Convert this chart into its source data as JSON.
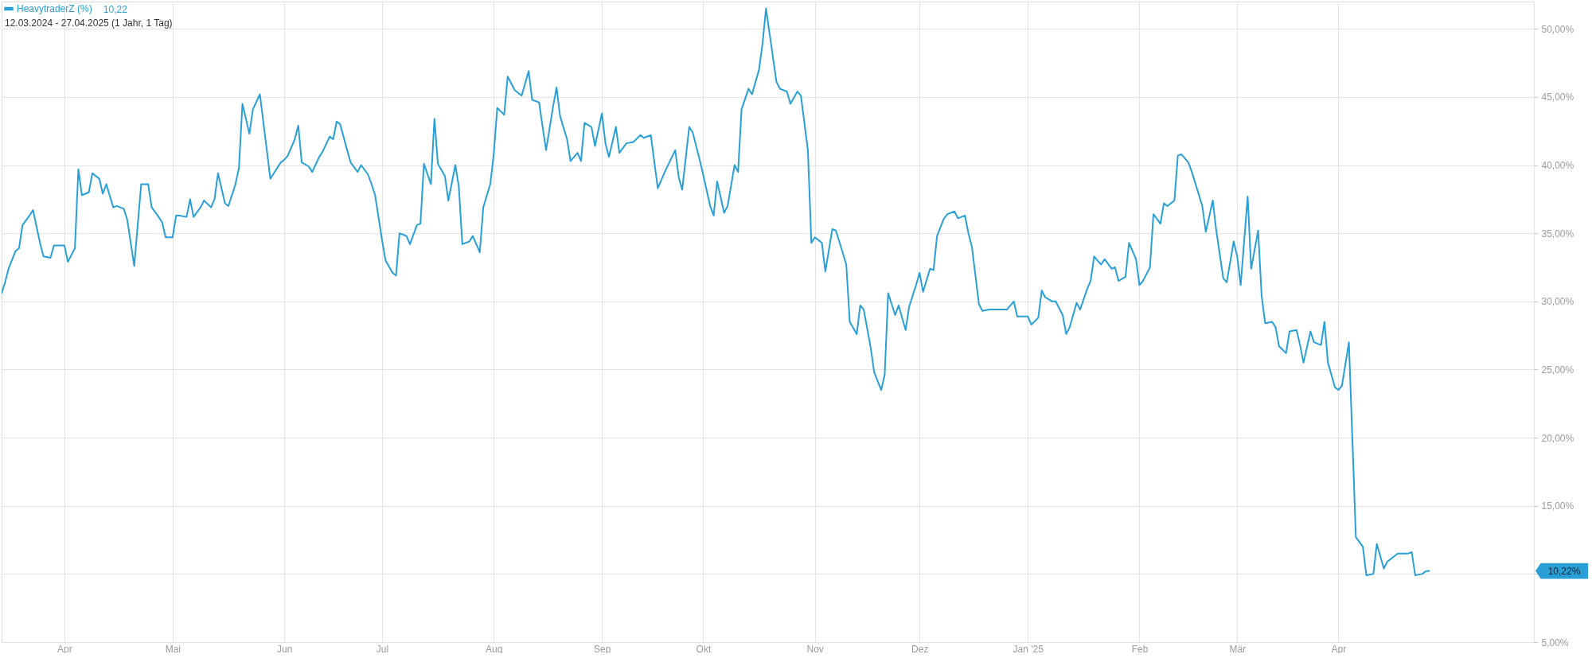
{
  "chart_data": {
    "type": "line",
    "subtitle": "12.03.2024 - 27.04.2025 (1 Jahr, 1 Tag)",
    "x": [
      "2024-03-14",
      "2024-03-15",
      "2024-03-16",
      "2024-03-18",
      "2024-03-19",
      "2024-03-20",
      "2024-03-22",
      "2024-03-23",
      "2024-03-25",
      "2024-03-26",
      "2024-03-28",
      "2024-03-29",
      "2024-04-01",
      "2024-04-02",
      "2024-04-04",
      "2024-04-05",
      "2024-04-06",
      "2024-04-08",
      "2024-04-09",
      "2024-04-11",
      "2024-04-12",
      "2024-04-13",
      "2024-04-15",
      "2024-04-16",
      "2024-04-18",
      "2024-04-19",
      "2024-04-21",
      "2024-04-22",
      "2024-04-23",
      "2024-04-25",
      "2024-04-26",
      "2024-04-28",
      "2024-04-29",
      "2024-04-30",
      "2024-05-02",
      "2024-05-03",
      "2024-05-04",
      "2024-05-06",
      "2024-05-07",
      "2024-05-08",
      "2024-05-10",
      "2024-05-11",
      "2024-05-13",
      "2024-05-14",
      "2024-05-15",
      "2024-05-17",
      "2024-05-18",
      "2024-05-20",
      "2024-05-21",
      "2024-05-22",
      "2024-05-24",
      "2024-05-25",
      "2024-05-27",
      "2024-05-30",
      "2024-05-31",
      "2024-06-02",
      "2024-06-03",
      "2024-06-04",
      "2024-06-06",
      "2024-06-07",
      "2024-06-08",
      "2024-06-10",
      "2024-06-11",
      "2024-06-13",
      "2024-06-14",
      "2024-06-16",
      "2024-06-17",
      "2024-06-18",
      "2024-06-19",
      "2024-06-21",
      "2024-06-22",
      "2024-06-24",
      "2024-06-25",
      "2024-06-27",
      "2024-06-28",
      "2024-06-29",
      "2024-07-01",
      "2024-07-02",
      "2024-07-04",
      "2024-07-05",
      "2024-07-06",
      "2024-07-08",
      "2024-07-09",
      "2024-07-11",
      "2024-07-12",
      "2024-07-13",
      "2024-07-15",
      "2024-07-16",
      "2024-07-17",
      "2024-07-19",
      "2024-07-20",
      "2024-07-22",
      "2024-07-23",
      "2024-07-24",
      "2024-07-26",
      "2024-07-27",
      "2024-07-29",
      "2024-07-30",
      "2024-08-01",
      "2024-08-02",
      "2024-08-03",
      "2024-08-05",
      "2024-08-06",
      "2024-08-08",
      "2024-08-10",
      "2024-08-12",
      "2024-08-13",
      "2024-08-15",
      "2024-08-16",
      "2024-08-17",
      "2024-08-19",
      "2024-08-20",
      "2024-08-21",
      "2024-08-23",
      "2024-08-24",
      "2024-08-26",
      "2024-08-27",
      "2024-08-28",
      "2024-08-30",
      "2024-08-31",
      "2024-09-02",
      "2024-09-03",
      "2024-09-04",
      "2024-09-06",
      "2024-09-07",
      "2024-09-09",
      "2024-09-11",
      "2024-09-13",
      "2024-09-14",
      "2024-09-16",
      "2024-09-18",
      "2024-09-20",
      "2024-09-23",
      "2024-09-24",
      "2024-09-25",
      "2024-09-27",
      "2024-09-28",
      "2024-09-30",
      "2024-10-01",
      "2024-10-03",
      "2024-10-04",
      "2024-10-05",
      "2024-10-07",
      "2024-10-08",
      "2024-10-10",
      "2024-10-11",
      "2024-10-12",
      "2024-10-14",
      "2024-10-15",
      "2024-10-17",
      "2024-10-18",
      "2024-10-19",
      "2024-10-21",
      "2024-10-22",
      "2024-10-23",
      "2024-10-25",
      "2024-10-26",
      "2024-10-28",
      "2024-10-29",
      "2024-10-31",
      "2024-11-01",
      "2024-11-02",
      "2024-11-04",
      "2024-11-05",
      "2024-11-07",
      "2024-11-08",
      "2024-11-09",
      "2024-11-11",
      "2024-11-12",
      "2024-11-14",
      "2024-11-15",
      "2024-11-16",
      "2024-11-18",
      "2024-11-19",
      "2024-11-21",
      "2024-11-22",
      "2024-11-23",
      "2024-11-25",
      "2024-11-26",
      "2024-11-28",
      "2024-11-29",
      "2024-12-01",
      "2024-12-02",
      "2024-12-03",
      "2024-12-05",
      "2024-12-06",
      "2024-12-07",
      "2024-12-09",
      "2024-12-10",
      "2024-12-12",
      "2024-12-13",
      "2024-12-15",
      "2024-12-16",
      "2024-12-17",
      "2024-12-19",
      "2024-12-20",
      "2024-12-22",
      "2024-12-23",
      "2024-12-27",
      "2024-12-29",
      "2024-12-30",
      "2025-01-02",
      "2025-01-03",
      "2025-01-05",
      "2025-01-06",
      "2025-01-07",
      "2025-01-09",
      "2025-01-10",
      "2025-01-12",
      "2025-01-13",
      "2025-01-14",
      "2025-01-16",
      "2025-01-17",
      "2025-01-19",
      "2025-01-20",
      "2025-01-21",
      "2025-01-23",
      "2025-01-24",
      "2025-01-26",
      "2025-01-27",
      "2025-01-28",
      "2025-01-30",
      "2025-01-31",
      "2025-02-02",
      "2025-02-03",
      "2025-02-04",
      "2025-02-06",
      "2025-02-07",
      "2025-02-09",
      "2025-02-10",
      "2025-02-11",
      "2025-02-13",
      "2025-02-14",
      "2025-02-15",
      "2025-02-17",
      "2025-02-18",
      "2025-02-21",
      "2025-02-22",
      "2025-02-24",
      "2025-02-25",
      "2025-02-27",
      "2025-02-28",
      "2025-03-02",
      "2025-03-03",
      "2025-03-04",
      "2025-03-06",
      "2025-03-07",
      "2025-03-09",
      "2025-03-10",
      "2025-03-11",
      "2025-03-13",
      "2025-03-14",
      "2025-03-15",
      "2025-03-17",
      "2025-03-18",
      "2025-03-20",
      "2025-03-21",
      "2025-03-22",
      "2025-03-24",
      "2025-03-25",
      "2025-03-27",
      "2025-03-28",
      "2025-03-29",
      "2025-03-31",
      "2025-04-01",
      "2025-04-02",
      "2025-04-04",
      "2025-04-06",
      "2025-04-08",
      "2025-04-09",
      "2025-04-11",
      "2025-04-12",
      "2025-04-14",
      "2025-04-15",
      "2025-04-16",
      "2025-04-18",
      "2025-04-21",
      "2025-04-22",
      "2025-04-23",
      "2025-04-25",
      "2025-04-26",
      "2025-04-27"
    ],
    "series": [
      {
        "name": "HeavytraderZ (%)",
        "color": "#299fd8",
        "values": [
          30.6,
          31.4,
          32.4,
          33.7,
          33.9,
          35.6,
          36.3,
          36.7,
          34.3,
          33.3,
          33.2,
          34.1,
          34.1,
          32.9,
          33.9,
          39.7,
          37.8,
          38.0,
          39.4,
          39.0,
          37.9,
          38.6,
          36.9,
          37.0,
          36.8,
          36.0,
          32.6,
          35.6,
          38.6,
          38.6,
          36.9,
          36.2,
          35.8,
          34.7,
          34.7,
          36.3,
          36.3,
          36.2,
          37.5,
          36.2,
          36.9,
          37.4,
          36.9,
          37.5,
          39.4,
          37.2,
          37.0,
          38.6,
          39.8,
          44.5,
          42.3,
          44.1,
          45.2,
          39.0,
          39.4,
          40.2,
          40.4,
          40.7,
          41.9,
          42.9,
          40.2,
          39.9,
          39.5,
          40.6,
          41.0,
          42.1,
          41.9,
          43.2,
          43.0,
          41.1,
          40.2,
          39.5,
          40.0,
          39.3,
          38.6,
          37.8,
          34.5,
          33.0,
          32.1,
          31.9,
          35.0,
          34.8,
          34.2,
          35.6,
          35.7,
          40.1,
          38.6,
          43.4,
          40.1,
          39.2,
          37.4,
          40.0,
          38.4,
          34.2,
          34.4,
          34.8,
          33.6,
          36.9,
          38.6,
          40.8,
          44.2,
          43.7,
          46.5,
          45.5,
          45.1,
          46.9,
          44.8,
          44.6,
          42.8,
          41.1,
          44.3,
          45.7,
          43.6,
          41.9,
          40.3,
          40.9,
          40.3,
          43.1,
          42.8,
          41.4,
          43.8,
          41.6,
          40.6,
          42.8,
          40.9,
          41.6,
          41.7,
          42.2,
          42.0,
          42.2,
          38.3,
          39.5,
          41.1,
          39.1,
          38.2,
          42.8,
          42.4,
          40.4,
          39.3,
          37.0,
          36.3,
          38.8,
          36.5,
          37.0,
          40.0,
          39.5,
          44.1,
          45.6,
          45.2,
          47.0,
          48.9,
          51.5,
          47.9,
          46.1,
          45.6,
          45.4,
          44.5,
          45.4,
          45.1,
          41.1,
          34.3,
          34.7,
          34.3,
          32.2,
          35.3,
          35.2,
          34.4,
          32.7,
          28.5,
          27.6,
          29.7,
          29.4,
          26.6,
          24.8,
          23.5,
          24.6,
          30.6,
          29.0,
          29.7,
          27.9,
          29.6,
          31.2,
          32.1,
          30.7,
          32.4,
          32.3,
          34.8,
          36.1,
          36.4,
          36.6,
          36.1,
          36.3,
          35.0,
          34.0,
          29.8,
          29.3,
          29.4,
          29.4,
          29.4,
          30.0,
          28.9,
          28.9,
          28.3,
          28.8,
          30.8,
          30.3,
          30.0,
          30.0,
          29.0,
          27.6,
          28.1,
          29.9,
          29.4,
          30.9,
          31.5,
          33.3,
          32.7,
          33.1,
          32.4,
          32.5,
          31.5,
          31.8,
          34.3,
          33.1,
          31.2,
          31.5,
          32.5,
          36.4,
          35.7,
          37.2,
          37.0,
          37.4,
          40.7,
          40.8,
          40.2,
          39.5,
          37.0,
          35.1,
          37.4,
          35.2,
          31.7,
          31.4,
          34.4,
          33.3,
          31.2,
          37.7,
          32.4,
          35.2,
          30.4,
          28.4,
          28.5,
          28.1,
          26.7,
          26.2,
          27.8,
          27.9,
          26.8,
          25.5,
          27.8,
          27.0,
          26.8,
          28.5,
          25.5,
          23.7,
          23.5,
          23.8,
          27.0,
          12.7,
          12.0,
          9.9,
          10.0,
          12.2,
          10.4,
          10.9,
          11.1,
          11.5,
          11.5,
          11.6,
          9.9,
          10.0,
          10.2,
          10.22
        ]
      }
    ],
    "xlim": [
      "2024-03-14",
      "2025-05-27"
    ],
    "xticks": [
      {
        "value": "2024-04-01",
        "label": "Apr"
      },
      {
        "value": "2024-05-02",
        "label": "Mai"
      },
      {
        "value": "2024-06-03",
        "label": "Jun"
      },
      {
        "value": "2024-07-01",
        "label": "Jul"
      },
      {
        "value": "2024-08-02",
        "label": "Aug"
      },
      {
        "value": "2024-09-02",
        "label": "Sep"
      },
      {
        "value": "2024-10-01",
        "label": "Okt"
      },
      {
        "value": "2024-11-02",
        "label": "Nov"
      },
      {
        "value": "2024-12-02",
        "label": "Dez"
      },
      {
        "value": "2025-01-02",
        "label": "Jan '25"
      },
      {
        "value": "2025-02-03",
        "label": "Feb"
      },
      {
        "value": "2025-03-03",
        "label": "Mär"
      },
      {
        "value": "2025-04-01",
        "label": "Apr"
      }
    ],
    "ylim": [
      5,
      52
    ],
    "yticks": [
      {
        "value": 5,
        "label": "5,00%"
      },
      {
        "value": 10,
        "label": null
      },
      {
        "value": 15,
        "label": "15,00%"
      },
      {
        "value": 20,
        "label": "20,00%"
      },
      {
        "value": 25,
        "label": "25,00%"
      },
      {
        "value": 30,
        "label": "30,00%"
      },
      {
        "value": 35,
        "label": "35,00%"
      },
      {
        "value": 40,
        "label": "40,00%"
      },
      {
        "value": 45,
        "label": "45,00%"
      },
      {
        "value": 50,
        "label": "50,00%"
      }
    ],
    "grid": true,
    "legend": "top left",
    "line_style": "solid",
    "annotations": [
      "10,22",
      "10,22%"
    ]
  }
}
